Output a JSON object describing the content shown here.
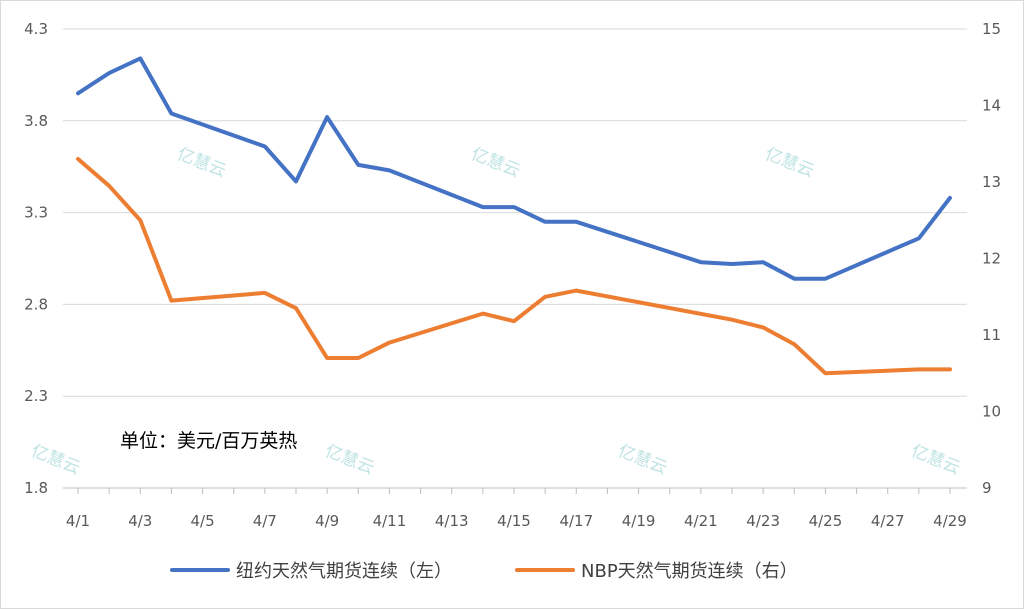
{
  "chart_data": {
    "type": "line",
    "unit_label": "单位：美元/百万英热",
    "watermark": "亿慧云",
    "categories": [
      "4/1",
      "4/2",
      "4/3",
      "4/4",
      "4/5",
      "4/6",
      "4/7",
      "4/8",
      "4/9",
      "4/10",
      "4/11",
      "4/12",
      "4/13",
      "4/14",
      "4/15",
      "4/16",
      "4/17",
      "4/18",
      "4/19",
      "4/20",
      "4/21",
      "4/22",
      "4/23",
      "4/24",
      "4/25",
      "4/26",
      "4/27",
      "4/28",
      "4/29"
    ],
    "x_tick_labels": [
      "4/1",
      "4/3",
      "4/5",
      "4/7",
      "4/9",
      "4/11",
      "4/13",
      "4/15",
      "4/17",
      "4/19",
      "4/21",
      "4/23",
      "4/25",
      "4/27",
      "4/29"
    ],
    "y_left": {
      "ylim": [
        1.8,
        4.3
      ],
      "ticks": [
        "1.8",
        "2.3",
        "2.8",
        "3.3",
        "3.8",
        "4.3"
      ]
    },
    "y_right": {
      "ylim": [
        9,
        15
      ],
      "ticks": [
        "9",
        "10",
        "11",
        "12",
        "13",
        "14",
        "15"
      ]
    },
    "grid": true,
    "legend_position": "bottom",
    "series": [
      {
        "name": "纽约天然气期货连续（左）",
        "axis": "left",
        "color": "#4472c4",
        "points": [
          [
            "4/1",
            3.95
          ],
          [
            "4/2",
            4.06
          ],
          [
            "4/3",
            4.14
          ],
          [
            "4/4",
            3.84
          ],
          [
            "4/7",
            3.66
          ],
          [
            "4/8",
            3.47
          ],
          [
            "4/9",
            3.82
          ],
          [
            "4/10",
            3.56
          ],
          [
            "4/11",
            3.53
          ],
          [
            "4/14",
            3.33
          ],
          [
            "4/15",
            3.33
          ],
          [
            "4/16",
            3.25
          ],
          [
            "4/17",
            3.25
          ],
          [
            "4/21",
            3.03
          ],
          [
            "4/22",
            3.02
          ],
          [
            "4/23",
            3.03
          ],
          [
            "4/24",
            2.94
          ],
          [
            "4/25",
            2.94
          ],
          [
            "4/28",
            3.16
          ],
          [
            "4/29",
            3.38
          ]
        ]
      },
      {
        "name": "NBP天然气期货连续（右）",
        "axis": "right",
        "color": "#ed7d31",
        "points": [
          [
            "4/1",
            13.3
          ],
          [
            "4/2",
            12.95
          ],
          [
            "4/3",
            12.5
          ],
          [
            "4/4",
            11.45
          ],
          [
            "4/7",
            11.55
          ],
          [
            "4/8",
            11.35
          ],
          [
            "4/9",
            10.7
          ],
          [
            "4/10",
            10.7
          ],
          [
            "4/11",
            10.9
          ],
          [
            "4/14",
            11.28
          ],
          [
            "4/15",
            11.18
          ],
          [
            "4/16",
            11.5
          ],
          [
            "4/17",
            11.58
          ],
          [
            "4/22",
            11.2
          ],
          [
            "4/23",
            11.1
          ],
          [
            "4/24",
            10.88
          ],
          [
            "4/25",
            10.5
          ],
          [
            "4/28",
            10.55
          ],
          [
            "4/29",
            10.55
          ]
        ]
      }
    ]
  }
}
